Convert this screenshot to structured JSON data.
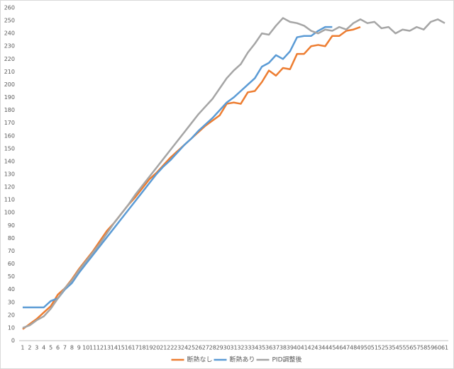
{
  "chart_data": {
    "type": "line",
    "categories": [
      "1",
      "2",
      "3",
      "4",
      "5",
      "6",
      "7",
      "8",
      "9",
      "10",
      "11",
      "12",
      "13",
      "14",
      "15",
      "16",
      "17",
      "18",
      "19",
      "20",
      "21",
      "22",
      "23",
      "24",
      "25",
      "26",
      "27",
      "28",
      "29",
      "30",
      "31",
      "32",
      "33",
      "34",
      "35",
      "36",
      "37",
      "38",
      "39",
      "40",
      "41",
      "42",
      "43",
      "44",
      "45",
      "46",
      "47",
      "48",
      "49",
      "50",
      "51",
      "52",
      "53",
      "54",
      "55",
      "56",
      "57",
      "58",
      "59",
      "60",
      "61"
    ],
    "series": [
      {
        "name": "断熱なし",
        "color": "#ed7d31",
        "values": [
          9,
          13,
          17,
          22,
          27,
          36,
          41,
          48,
          56,
          63,
          70,
          78,
          86,
          92,
          99,
          106,
          112,
          119,
          126,
          131,
          137,
          143,
          148,
          153,
          158,
          163,
          168,
          172,
          176,
          185,
          186,
          185,
          194,
          195,
          202,
          211,
          207,
          213,
          212,
          224,
          224,
          230,
          231,
          230,
          238,
          238,
          242,
          243,
          245,
          null,
          null,
          null,
          null,
          null,
          null,
          null,
          null,
          null,
          null,
          null,
          null
        ]
      },
      {
        "name": "断熱あり",
        "color": "#5b9bd5",
        "values": [
          26,
          26,
          26,
          26,
          31,
          33,
          40,
          45,
          53,
          60,
          67,
          74,
          81,
          88,
          95,
          102,
          109,
          116,
          123,
          130,
          136,
          141,
          147,
          153,
          158,
          164,
          169,
          174,
          180,
          186,
          190,
          195,
          200,
          205,
          214,
          217,
          223,
          220,
          226,
          237,
          238,
          238,
          242,
          245,
          245,
          null,
          null,
          null,
          null,
          null,
          null,
          null,
          null,
          null,
          null,
          null,
          null,
          null,
          null,
          null,
          null
        ]
      },
      {
        "name": "PID調整後",
        "color": "#a5a5a5",
        "values": [
          10,
          12,
          16,
          19,
          25,
          33,
          41,
          47,
          55,
          62,
          69,
          76,
          84,
          92,
          99,
          106,
          114,
          121,
          128,
          135,
          142,
          149,
          156,
          163,
          170,
          177,
          183,
          189,
          197,
          205,
          211,
          216,
          225,
          232,
          240,
          239,
          246,
          252,
          249,
          248,
          246,
          242,
          240,
          243,
          242,
          245,
          243,
          248,
          251,
          248,
          249,
          244,
          245,
          240,
          243,
          242,
          245,
          243,
          249,
          251,
          248
        ]
      }
    ],
    "ylim": [
      0,
      260
    ],
    "yticks": [
      0,
      10,
      20,
      30,
      40,
      50,
      60,
      70,
      80,
      90,
      100,
      110,
      120,
      130,
      140,
      150,
      160,
      170,
      180,
      190,
      200,
      210,
      220,
      230,
      240,
      250,
      260
    ],
    "grid": false,
    "legend": "bottom"
  }
}
